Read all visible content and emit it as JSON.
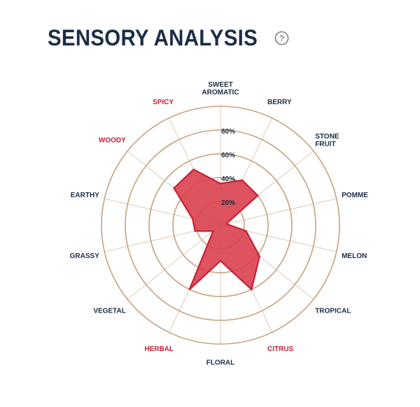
{
  "header": {
    "title": "SENSORY ANALYSIS",
    "help_icon": "question-circle-icon"
  },
  "colors": {
    "title": "#1c2e46",
    "ring": "#c8a27e",
    "spoke": "#dccbb8",
    "fill": "#d9414f",
    "stroke": "#c8203a",
    "label_default": "#1c2e46",
    "label_highlight": "#c8203a",
    "icon": "#8a8a8a"
  },
  "chart_data": {
    "type": "radar",
    "title": "SENSORY ANALYSIS",
    "rlim": [
      0,
      100
    ],
    "ticks": [
      20,
      40,
      60,
      80
    ],
    "tick_labels": [
      "20%",
      "40%",
      "60%",
      "80%"
    ],
    "grid": true,
    "categories": [
      {
        "label": "SWEET\nAROMATIC",
        "highlight": false
      },
      {
        "label": "BERRY",
        "highlight": false
      },
      {
        "label": "STONE\nFRUIT",
        "highlight": false
      },
      {
        "label": "POMME",
        "highlight": false
      },
      {
        "label": "MELON",
        "highlight": false
      },
      {
        "label": "TROPICAL",
        "highlight": false
      },
      {
        "label": "CITRUS",
        "highlight": true
      },
      {
        "label": "FLORAL",
        "highlight": false
      },
      {
        "label": "HERBAL",
        "highlight": true
      },
      {
        "label": "VEGETAL",
        "highlight": false
      },
      {
        "label": "GRASSY",
        "highlight": false
      },
      {
        "label": "EARTHY",
        "highlight": false
      },
      {
        "label": "WOODY",
        "highlight": true
      },
      {
        "label": "SPICY",
        "highlight": true
      }
    ],
    "values": [
      35,
      42,
      40,
      5,
      22,
      42,
      60,
      30,
      60,
      8,
      22,
      24,
      50,
      52
    ]
  }
}
